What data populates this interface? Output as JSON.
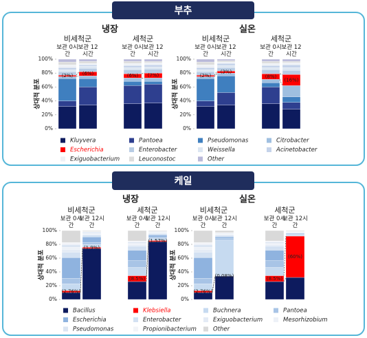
{
  "chart_data": [
    {
      "type": "bar",
      "stacked": true,
      "title": "부추",
      "facets": [
        "냉장",
        "실온"
      ],
      "groups": [
        "비세척군",
        "세척군",
        "비세척군",
        "세척군"
      ],
      "categories": [
        "보관 0시간",
        "보관 12시간",
        "보관 0시간",
        "보관 12시간",
        "보관 0시간",
        "보관 12시간",
        "보관 0시간",
        "보관 12시간"
      ],
      "ylabel": "상대적 분포",
      "ylim": [
        0,
        100
      ],
      "yticks": [
        {
          "value": 0,
          "label": "0%"
        },
        {
          "value": 20,
          "label": "20%"
        },
        {
          "value": 40,
          "label": "40%"
        },
        {
          "value": 60,
          "label": "60%"
        },
        {
          "value": 80,
          "label": "80%"
        },
        {
          "value": 100,
          "label": "100%"
        }
      ],
      "series": [
        {
          "name": "Kluyvera",
          "color": "#0d1b5e",
          "values": [
            32,
            34,
            36,
            37,
            32,
            34,
            36,
            28
          ]
        },
        {
          "name": "Pantoea",
          "color": "#2e3f8f",
          "values": [
            8,
            26,
            26,
            27,
            8,
            18,
            24,
            10
          ]
        },
        {
          "name": "Pseudomonas",
          "color": "#3f7fbf",
          "values": [
            32,
            12,
            6,
            4,
            32,
            24,
            6,
            8
          ]
        },
        {
          "name": "Citrobacter",
          "color": "#9fbfe0",
          "values": [
            3,
            4,
            5,
            5,
            3,
            4,
            5,
            16
          ]
        },
        {
          "name": "Escherichia",
          "color": "#ff0000",
          "label_color": "#ff0000",
          "values": [
            2,
            6,
            6,
            7,
            2,
            3,
            8,
            16
          ],
          "value_labels": [
            "(2%)",
            "(6%)",
            "(6%)",
            "(7%)",
            "(2%)",
            "(3%)",
            "(8%)",
            "(16%)"
          ]
        },
        {
          "name": "Enterobacter",
          "color": "#b8cce4",
          "values": [
            5,
            5,
            6,
            6,
            5,
            5,
            6,
            6
          ]
        },
        {
          "name": "Weissella",
          "color": "#dce6f2",
          "values": [
            3,
            3,
            3,
            3,
            3,
            3,
            3,
            4
          ]
        },
        {
          "name": "Acinetobacter",
          "color": "#c5d3ea",
          "values": [
            3,
            2,
            3,
            3,
            3,
            3,
            3,
            4
          ]
        },
        {
          "name": "Exiguobacterium",
          "color": "#eef1f6",
          "values": [
            4,
            2,
            3,
            3,
            4,
            2,
            3,
            3
          ]
        },
        {
          "name": "Leuconostoc",
          "color": "#dcdcdc",
          "values": [
            4,
            3,
            3,
            2,
            4,
            2,
            3,
            2
          ]
        },
        {
          "name": "Other",
          "color": "#b9b9d9",
          "values": [
            4,
            3,
            3,
            3,
            4,
            2,
            3,
            3
          ]
        }
      ]
    },
    {
      "type": "bar",
      "stacked": true,
      "title": "케일",
      "facets": [
        "냉장",
        "실온"
      ],
      "groups": [
        "비세척군",
        "세척군",
        "비세척군",
        "세척군"
      ],
      "categories": [
        "보관 0시간",
        "보관 12시간",
        "보관 0시간",
        "보관 12시간",
        "보관 0시간",
        "보관 12시간",
        "보관 0시간",
        "보관 12시간"
      ],
      "ylabel": "상대적 분포",
      "ylim": [
        0,
        100
      ],
      "yticks": [
        {
          "value": 0,
          "label": "0%"
        },
        {
          "value": 20,
          "label": "20%"
        },
        {
          "value": 40,
          "label": "40%"
        },
        {
          "value": 60,
          "label": "60%"
        },
        {
          "value": 80,
          "label": "80%"
        },
        {
          "value": 100,
          "label": "100%"
        }
      ],
      "series": [
        {
          "name": "Bacillus",
          "color": "#0d1b5e",
          "values": [
            10,
            74,
            26,
            84,
            10,
            34,
            26,
            32
          ]
        },
        {
          "name": "Klebsiella",
          "color": "#ff0000",
          "label_color": "#ff0000",
          "values": [
            2.76,
            1.9,
            8.5,
            1.57,
            2.76,
            0.08,
            8.5,
            60
          ],
          "value_labels": [
            "(2.76%)",
            "(1.9%)",
            "(8.5%)",
            "(1.57%)",
            "(2.76%)",
            "(0.08%)",
            "(8.5%)",
            "(60%)"
          ]
        },
        {
          "name": "Buchnera",
          "color": "#c6daf0",
          "values": [
            10,
            4,
            12,
            3,
            10,
            52,
            12,
            2
          ]
        },
        {
          "name": "Pantoea",
          "color": "#a8c4e6",
          "values": [
            8,
            3,
            10,
            2,
            8,
            3,
            10,
            1
          ]
        },
        {
          "name": "Escherichia",
          "color": "#8fb3df",
          "values": [
            30,
            8,
            15,
            3,
            30,
            2,
            15,
            1
          ]
        },
        {
          "name": "Enterobacter",
          "color": "#d3e1f2",
          "values": [
            8,
            3,
            6,
            2,
            8,
            2,
            6,
            1
          ]
        },
        {
          "name": "Exiguobacterium",
          "color": "#e4ebf5",
          "values": [
            4,
            1,
            2,
            1,
            4,
            1,
            2,
            0.5
          ]
        },
        {
          "name": "Mesorhizobium",
          "color": "#edf1f7",
          "values": [
            3,
            1,
            2,
            1,
            3,
            1,
            2,
            0.5
          ]
        },
        {
          "name": "Pseudomonas",
          "color": "#dbe5f2",
          "values": [
            4,
            2,
            2,
            1,
            4,
            1,
            2,
            0.5
          ]
        },
        {
          "name": "Propionibacterium",
          "color": "#f2f4f8",
          "values": [
            3,
            1,
            1.5,
            0.43,
            3,
            1,
            1.5,
            0.5
          ]
        },
        {
          "name": "Other",
          "color": "#d9d9d9",
          "values": [
            17.24,
            1.1,
            15,
            1,
            17.24,
            2.92,
            15,
            1
          ]
        }
      ]
    }
  ]
}
